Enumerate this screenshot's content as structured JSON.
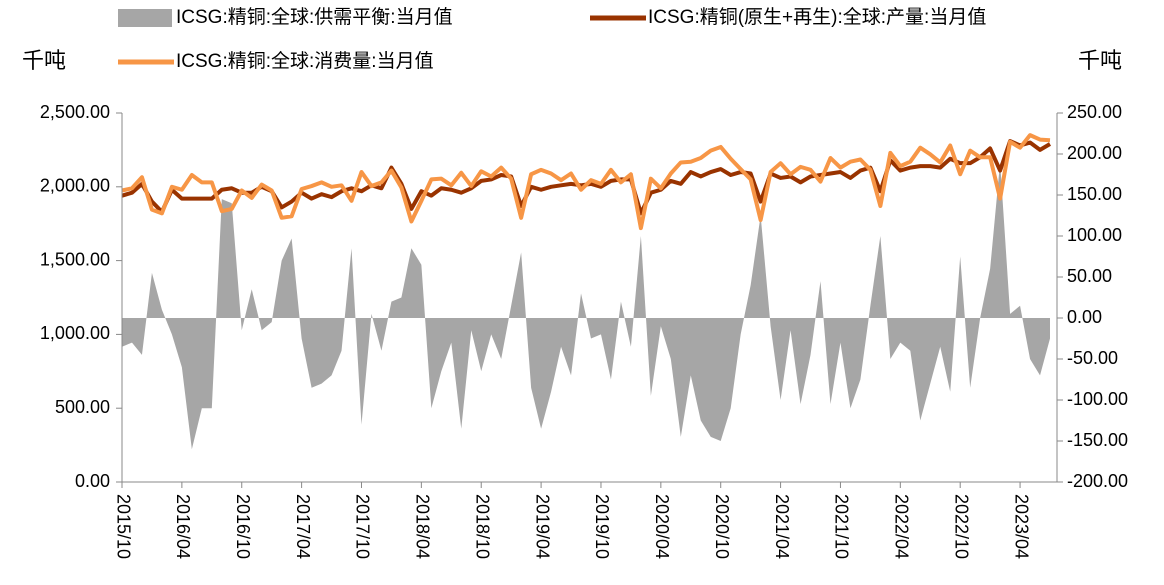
{
  "chart_data": {
    "type": "line",
    "ylabel": "千吨",
    "y2label": "千吨",
    "categories": [
      "2015/10",
      null,
      null,
      null,
      null,
      null,
      "2016/04",
      null,
      null,
      null,
      null,
      null,
      "2016/10",
      null,
      null,
      null,
      null,
      null,
      "2017/04",
      null,
      null,
      null,
      null,
      null,
      "2017/10",
      null,
      null,
      null,
      null,
      null,
      "2018/04",
      null,
      null,
      null,
      null,
      null,
      "2018/10",
      null,
      null,
      null,
      null,
      null,
      "2019/04",
      null,
      null,
      null,
      null,
      null,
      "2019/10",
      null,
      null,
      null,
      null,
      null,
      "2020/04",
      null,
      null,
      null,
      null,
      null,
      "2020/10",
      null,
      null,
      null,
      null,
      null,
      "2021/04",
      null,
      null,
      null,
      null,
      null,
      "2021/10",
      null,
      null,
      null,
      null,
      null,
      "2022/04",
      null,
      null,
      null,
      null,
      null,
      "2022/10",
      null,
      null,
      null,
      null,
      null,
      "2023/04",
      null,
      null,
      null
    ],
    "series": [
      {
        "name": "ICSG:精铜:全球:供需平衡:当月值",
        "type": "area",
        "axis": "y2",
        "color": "#a6a6a6",
        "values": [
          -35,
          -30,
          -45,
          55,
          10,
          -20,
          -60,
          -160,
          -110,
          -110,
          145,
          140,
          -15,
          35,
          -15,
          -5,
          70,
          97,
          -25,
          -85,
          -80,
          -70,
          -40,
          85,
          -130,
          5,
          -40,
          20,
          25,
          85,
          65,
          -110,
          -65,
          -30,
          -135,
          -15,
          -65,
          -20,
          -50,
          15,
          80,
          -85,
          -135,
          -90,
          -35,
          -70,
          30,
          -25,
          -20,
          -75,
          20,
          -35,
          100,
          -95,
          -10,
          -50,
          -145,
          -70,
          -125,
          -145,
          -150,
          -110,
          -20,
          40,
          125,
          -10,
          -100,
          -15,
          -105,
          -45,
          45,
          -105,
          -30,
          -110,
          -75,
          15,
          100,
          -50,
          -30,
          -40,
          -125,
          -80,
          -35,
          -90,
          75,
          -85,
          0,
          60,
          190,
          5,
          15,
          -50,
          -70,
          -25
        ]
      },
      {
        "name": "ICSG:精铜(原生+再生):全球:产量:当月值",
        "type": "line",
        "color": "#993300",
        "values": [
          1940,
          1960,
          2020,
          1900,
          1830,
          1980,
          1920,
          1920,
          1920,
          1920,
          1980,
          1990,
          1960,
          1960,
          2000,
          1970,
          1860,
          1900,
          1960,
          1920,
          1950,
          1930,
          1970,
          1990,
          1970,
          2010,
          1990,
          2130,
          2020,
          1850,
          1970,
          1940,
          1990,
          1980,
          1960,
          1990,
          2040,
          2050,
          2080,
          2070,
          1870,
          2000,
          1980,
          2000,
          2010,
          2020,
          2010,
          2020,
          2000,
          2040,
          2050,
          2050,
          1820,
          1960,
          1980,
          2040,
          2020,
          2100,
          2070,
          2100,
          2120,
          2080,
          2100,
          2090,
          1900,
          2090,
          2060,
          2070,
          2030,
          2070,
          2080,
          2090,
          2100,
          2060,
          2110,
          2130,
          1970,
          2180,
          2110,
          2130,
          2140,
          2140,
          2130,
          2190,
          2160,
          2160,
          2200,
          2260,
          2110,
          2310,
          2280,
          2300,
          2250,
          2290
        ]
      },
      {
        "name": "ICSG:精铜:全球:消费量:当月值",
        "type": "line",
        "color": "#f79646",
        "values": [
          1975,
          1990,
          2065,
          1845,
          1820,
          2000,
          1980,
          2080,
          2030,
          2030,
          1835,
          1850,
          1975,
          1925,
          2015,
          1975,
          1790,
          1800,
          1985,
          2005,
          2030,
          2000,
          2010,
          1905,
          2100,
          2005,
          2030,
          2110,
          1995,
          1765,
          1905,
          2050,
          2055,
          2010,
          2095,
          2005,
          2105,
          2070,
          2130,
          2055,
          1790,
          2085,
          2115,
          2090,
          2045,
          2090,
          1980,
          2045,
          2020,
          2115,
          2030,
          2085,
          1720,
          2055,
          1990,
          2090,
          2165,
          2170,
          2195,
          2245,
          2270,
          2190,
          2120,
          2050,
          1775,
          2100,
          2160,
          2085,
          2135,
          2115,
          2035,
          2195,
          2130,
          2170,
          2185,
          2115,
          1870,
          2230,
          2140,
          2170,
          2265,
          2220,
          2165,
          2280,
          2085,
          2245,
          2200,
          2200,
          1920,
          2305,
          2265,
          2350,
          2320,
          2315
        ]
      }
    ],
    "ylim": [
      0,
      2500
    ],
    "yticks": [
      {
        "value": 0,
        "label": "0.00"
      },
      {
        "value": 500,
        "label": "500.00"
      },
      {
        "value": 1000,
        "label": "1,000.00"
      },
      {
        "value": 1500,
        "label": "1,500.00"
      },
      {
        "value": 2000,
        "label": "2,000.00"
      },
      {
        "value": 2500,
        "label": "2,500.00"
      }
    ],
    "y2lim": [
      -200,
      250
    ],
    "y2ticks": [
      {
        "value": -200,
        "label": "-200.00"
      },
      {
        "value": -150,
        "label": "-150.00"
      },
      {
        "value": -100,
        "label": "-100.00"
      },
      {
        "value": -50,
        "label": "-50.00"
      },
      {
        "value": 0,
        "label": "0.00"
      },
      {
        "value": 50,
        "label": "50.00"
      },
      {
        "value": 100,
        "label": "100.00"
      },
      {
        "value": 150,
        "label": "150.00"
      },
      {
        "value": 200,
        "label": "200.00"
      },
      {
        "value": 250,
        "label": "250.00"
      }
    ],
    "legend": "top"
  }
}
